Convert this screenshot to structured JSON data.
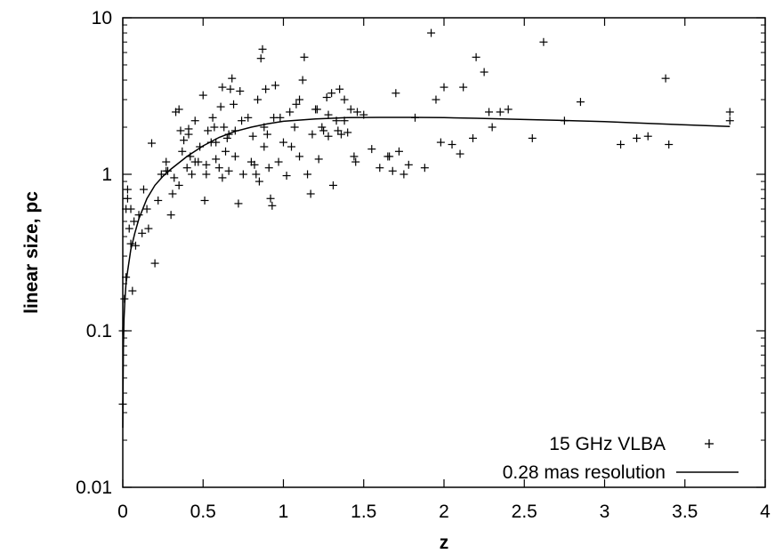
{
  "chart_data": {
    "type": "scatter",
    "title": "",
    "xlabel": "z",
    "ylabel": "linear size, pc",
    "xscale": "linear",
    "yscale": "log",
    "xlim": [
      0,
      4
    ],
    "ylim": [
      0.01,
      10
    ],
    "xticks": [
      0,
      0.5,
      1,
      1.5,
      2,
      2.5,
      3,
      3.5,
      4
    ],
    "xtick_labels": [
      "0",
      "0.5",
      "1",
      "1.5",
      "2",
      "2.5",
      "3",
      "3.5",
      "4"
    ],
    "yticks": [
      0.01,
      0.1,
      1,
      10
    ],
    "ytick_labels": [
      "0.01",
      "0.1",
      "1",
      "10"
    ],
    "grid": false,
    "legend_position": "bottom-right",
    "series": [
      {
        "name": "15 GHz VLBA",
        "kind": "points",
        "marker": "plus",
        "color": "#000000",
        "x": [
          0.0,
          0.0,
          0.01,
          0.02,
          0.02,
          0.03,
          0.03,
          0.04,
          0.05,
          0.06,
          0.07,
          0.08,
          0.1,
          0.12,
          0.13,
          0.15,
          0.18,
          0.2,
          0.24,
          0.27,
          0.28,
          0.3,
          0.31,
          0.32,
          0.33,
          0.35,
          0.36,
          0.37,
          0.38,
          0.4,
          0.41,
          0.42,
          0.43,
          0.45,
          0.47,
          0.48,
          0.5,
          0.51,
          0.52,
          0.53,
          0.55,
          0.56,
          0.57,
          0.58,
          0.6,
          0.61,
          0.62,
          0.63,
          0.64,
          0.65,
          0.66,
          0.67,
          0.68,
          0.69,
          0.7,
          0.72,
          0.73,
          0.75,
          0.78,
          0.8,
          0.81,
          0.83,
          0.84,
          0.85,
          0.86,
          0.87,
          0.88,
          0.89,
          0.9,
          0.91,
          0.92,
          0.93,
          0.95,
          0.98,
          1.0,
          1.02,
          1.04,
          1.05,
          1.07,
          1.08,
          1.1,
          1.12,
          1.13,
          1.15,
          1.17,
          1.18,
          1.2,
          1.22,
          1.24,
          1.25,
          1.27,
          1.28,
          1.3,
          1.31,
          1.33,
          1.35,
          1.36,
          1.38,
          1.4,
          1.42,
          1.44,
          1.46,
          1.5,
          1.55,
          1.6,
          1.65,
          1.68,
          1.7,
          1.75,
          1.78,
          1.82,
          1.88,
          1.92,
          1.95,
          1.98,
          2.0,
          2.05,
          2.1,
          2.12,
          2.18,
          2.2,
          2.25,
          2.28,
          2.3,
          2.35,
          2.4,
          2.55,
          2.62,
          2.75,
          2.85,
          3.1,
          3.2,
          3.27,
          3.38,
          3.4,
          3.78,
          3.78,
          0.05,
          0.22,
          0.35,
          0.45,
          0.52,
          0.58,
          0.62,
          0.66,
          0.7,
          0.74,
          0.82,
          0.88,
          0.94,
          1.1,
          1.28,
          1.34,
          1.38,
          0.16,
          0.27,
          0.41,
          0.97,
          1.21,
          1.45,
          1.66,
          1.72
        ],
        "y": [
          0.034,
          0.1,
          0.16,
          0.22,
          0.6,
          0.7,
          0.8,
          0.45,
          0.36,
          0.18,
          0.5,
          0.35,
          0.55,
          0.42,
          0.8,
          0.6,
          1.58,
          0.27,
          1.0,
          1.2,
          1.05,
          0.55,
          0.75,
          0.95,
          2.5,
          2.6,
          1.9,
          1.4,
          1.65,
          1.1,
          1.8,
          1.3,
          1.0,
          2.2,
          1.2,
          1.5,
          3.2,
          0.68,
          1.0,
          1.9,
          1.6,
          2.3,
          2.0,
          1.25,
          1.1,
          2.7,
          3.6,
          2.0,
          1.4,
          1.7,
          1.05,
          3.5,
          4.1,
          2.8,
          1.3,
          0.65,
          3.4,
          1.0,
          2.3,
          1.2,
          1.75,
          1.0,
          3.0,
          0.9,
          5.5,
          6.3,
          2.0,
          3.5,
          1.8,
          1.1,
          0.7,
          0.63,
          3.7,
          2.3,
          1.6,
          0.98,
          2.5,
          1.5,
          2.0,
          2.8,
          1.3,
          4.0,
          5.6,
          1.0,
          0.75,
          1.8,
          2.6,
          1.25,
          2.0,
          1.9,
          3.1,
          2.4,
          3.3,
          0.85,
          2.2,
          3.5,
          1.8,
          3.0,
          1.85,
          2.6,
          1.3,
          2.5,
          2.4,
          1.45,
          1.1,
          1.3,
          1.05,
          3.3,
          1.0,
          1.15,
          2.3,
          1.1,
          8.0,
          3.0,
          1.6,
          3.6,
          1.55,
          1.35,
          3.6,
          1.7,
          5.6,
          4.5,
          2.5,
          2.0,
          2.5,
          2.6,
          1.7,
          7.0,
          2.2,
          2.9,
          1.55,
          1.7,
          1.75,
          4.1,
          1.55,
          2.5,
          2.2,
          0.6,
          0.68,
          0.85,
          1.2,
          1.15,
          1.6,
          0.95,
          1.8,
          1.9,
          2.2,
          1.15,
          1.5,
          2.3,
          3.0,
          1.75,
          1.9,
          2.2,
          0.45,
          1.05,
          1.95,
          1.2,
          2.6,
          1.2,
          1.3,
          1.4
        ]
      },
      {
        "name": "0.28 mas resolution",
        "kind": "line",
        "color": "#000000",
        "x": [
          0.0,
          0.002,
          0.004,
          0.008,
          0.012,
          0.02,
          0.03,
          0.05,
          0.075,
          0.1,
          0.15,
          0.2,
          0.25,
          0.3,
          0.4,
          0.5,
          0.6,
          0.7,
          0.8,
          0.9,
          1.0,
          1.2,
          1.4,
          1.6,
          1.8,
          2.0,
          2.2,
          2.5,
          2.8,
          3.0,
          3.2,
          3.5,
          3.78
        ],
        "y": [
          0.024,
          0.05,
          0.08,
          0.12,
          0.15,
          0.2,
          0.24,
          0.33,
          0.42,
          0.52,
          0.7,
          0.85,
          0.97,
          1.08,
          1.3,
          1.52,
          1.72,
          1.88,
          2.0,
          2.1,
          2.18,
          2.26,
          2.3,
          2.31,
          2.31,
          2.3,
          2.28,
          2.24,
          2.2,
          2.17,
          2.13,
          2.07,
          2.02
        ]
      }
    ]
  }
}
